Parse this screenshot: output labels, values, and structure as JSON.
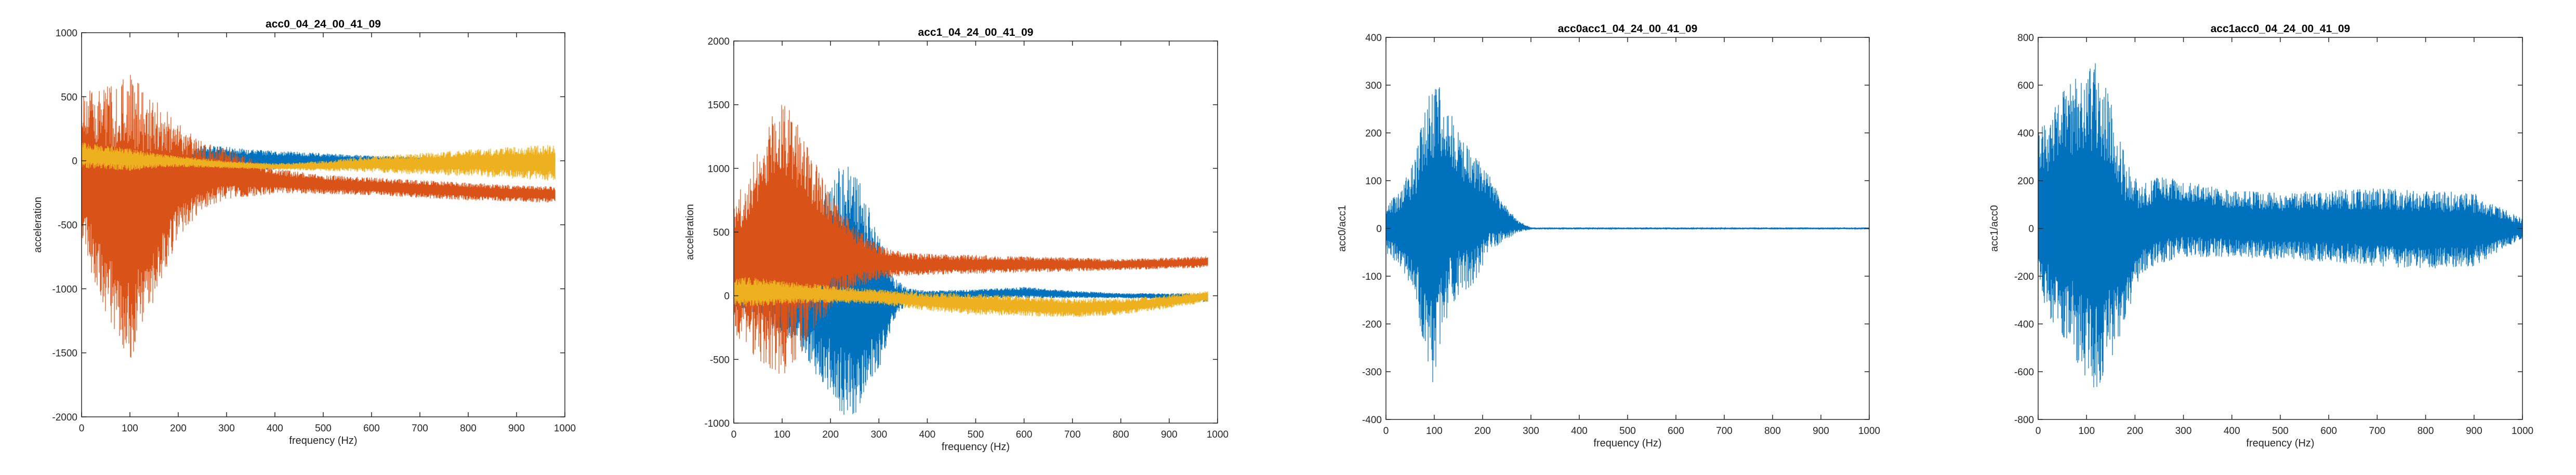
{
  "figure": {
    "background": "#ffffff"
  },
  "colors": {
    "blue": "#0072bd",
    "orange": "#d95319",
    "yellow": "#edb120",
    "axis": "#262626"
  },
  "chart_data": [
    {
      "type": "line",
      "title": "acc0_04_24_00_41_09",
      "xlabel": "frequency (Hz)",
      "ylabel": "acceleration",
      "xlim": [
        0,
        1000
      ],
      "ylim": [
        -2000,
        1000
      ],
      "xticks": [
        0,
        100,
        200,
        300,
        400,
        500,
        600,
        700,
        800,
        900,
        1000
      ],
      "yticks": [
        -2000,
        -1500,
        -1000,
        -500,
        0,
        500,
        1000
      ],
      "grid": false,
      "series": [
        {
          "color": "#0072bd",
          "x": [
            0,
            50,
            100,
            150,
            200,
            250,
            300,
            350,
            400,
            500,
            600,
            700,
            800,
            900,
            980
          ],
          "upper": [
            40,
            60,
            40,
            20,
            30,
            120,
            110,
            90,
            80,
            60,
            40,
            30,
            20,
            10,
            20
          ],
          "lower": [
            -60,
            -50,
            -30,
            -30,
            -30,
            -60,
            -70,
            -80,
            -70,
            -50,
            -40,
            -30,
            -20,
            -10,
            -10
          ]
        },
        {
          "color": "#d95319",
          "x": [
            0,
            50,
            100,
            150,
            200,
            250,
            300,
            400,
            500,
            600,
            700,
            800,
            900,
            980
          ],
          "upper": [
            550,
            580,
            680,
            500,
            300,
            150,
            100,
            -60,
            -110,
            -130,
            -150,
            -170,
            -190,
            -200
          ],
          "lower": [
            -700,
            -1200,
            -1560,
            -1100,
            -600,
            -380,
            -300,
            -260,
            -260,
            -270,
            -290,
            -310,
            -320,
            -330
          ]
        },
        {
          "color": "#edb120",
          "x": [
            0,
            50,
            100,
            150,
            200,
            300,
            400,
            500,
            600,
            700,
            800,
            900,
            980
          ],
          "upper": [
            150,
            120,
            100,
            60,
            40,
            0,
            -20,
            0,
            40,
            60,
            90,
            110,
            130
          ],
          "lower": [
            -60,
            -70,
            -80,
            -60,
            -50,
            -60,
            -70,
            -80,
            -90,
            -110,
            -120,
            -140,
            -160
          ]
        }
      ]
    },
    {
      "type": "line",
      "title": "acc1_04_24_00_41_09",
      "xlabel": "frequency (Hz)",
      "ylabel": "acceleration",
      "xlim": [
        0,
        1000
      ],
      "ylim": [
        -1000,
        2000
      ],
      "xticks": [
        0,
        100,
        200,
        300,
        400,
        500,
        600,
        700,
        800,
        900,
        1000
      ],
      "yticks": [
        -1000,
        -500,
        0,
        500,
        1000,
        1500,
        2000
      ],
      "grid": false,
      "series": [
        {
          "color": "#0072bd",
          "x": [
            0,
            50,
            100,
            150,
            200,
            230,
            260,
            300,
            330,
            360,
            400,
            500,
            600,
            700,
            800,
            900,
            980
          ],
          "upper": [
            200,
            250,
            300,
            500,
            900,
            1080,
            900,
            500,
            150,
            60,
            40,
            50,
            70,
            40,
            20,
            20,
            20
          ],
          "lower": [
            -100,
            -200,
            -300,
            -500,
            -800,
            -980,
            -900,
            -600,
            -200,
            -50,
            -30,
            -20,
            -20,
            -20,
            -20,
            -30,
            -50
          ]
        },
        {
          "color": "#d95319",
          "x": [
            0,
            50,
            100,
            150,
            200,
            250,
            300,
            350,
            400,
            500,
            600,
            700,
            800,
            900,
            980
          ],
          "upper": [
            700,
            1200,
            1600,
            1200,
            800,
            550,
            400,
            340,
            330,
            320,
            310,
            300,
            290,
            300,
            310
          ],
          "lower": [
            -300,
            -500,
            -650,
            -400,
            -100,
            50,
            130,
            150,
            160,
            170,
            180,
            190,
            200,
            210,
            220
          ]
        },
        {
          "color": "#edb120",
          "x": [
            0,
            50,
            100,
            150,
            200,
            300,
            400,
            500,
            600,
            700,
            800,
            900,
            980
          ],
          "upper": [
            150,
            140,
            120,
            100,
            80,
            50,
            30,
            20,
            0,
            -20,
            -20,
            10,
            40
          ],
          "lower": [
            -80,
            -90,
            -70,
            -60,
            -60,
            -70,
            -120,
            -150,
            -160,
            -170,
            -150,
            -100,
            -50
          ]
        }
      ]
    },
    {
      "type": "line",
      "title": "acc0acc1_04_24_00_41_09",
      "xlabel": "frequency (Hz)",
      "ylabel": "acc0/acc1",
      "xlim": [
        0,
        1000
      ],
      "ylim": [
        -400,
        400
      ],
      "xticks": [
        0,
        100,
        200,
        300,
        400,
        500,
        600,
        700,
        800,
        900,
        1000
      ],
      "yticks": [
        -400,
        -300,
        -200,
        -100,
        0,
        100,
        200,
        300,
        400
      ],
      "grid": false,
      "series": [
        {
          "color": "#0072bd",
          "x": [
            0,
            30,
            60,
            80,
            100,
            120,
            150,
            180,
            210,
            240,
            270,
            300,
            400,
            600,
            800,
            1000
          ],
          "upper": [
            50,
            80,
            150,
            250,
            330,
            280,
            200,
            160,
            120,
            60,
            20,
            2,
            2,
            2,
            2,
            2
          ],
          "lower": [
            -50,
            -80,
            -150,
            -250,
            -340,
            -200,
            -140,
            -120,
            -60,
            -30,
            -10,
            -2,
            -2,
            -2,
            -2,
            -2
          ]
        }
      ]
    },
    {
      "type": "line",
      "title": "acc1acc0_04_24_00_41_09",
      "xlabel": "frequency (Hz)",
      "ylabel": "acc1/acc0",
      "xlim": [
        0,
        1000
      ],
      "ylim": [
        -800,
        800
      ],
      "xticks": [
        0,
        100,
        200,
        300,
        400,
        500,
        600,
        700,
        800,
        900,
        1000
      ],
      "yticks": [
        -800,
        -600,
        -400,
        -200,
        0,
        200,
        400,
        600,
        800
      ],
      "grid": false,
      "series": [
        {
          "color": "#0072bd",
          "x": [
            0,
            30,
            60,
            90,
            120,
            150,
            180,
            210,
            250,
            300,
            400,
            500,
            600,
            700,
            800,
            900,
            1000
          ],
          "upper": [
            400,
            500,
            600,
            650,
            700,
            550,
            300,
            180,
            220,
            200,
            160,
            150,
            160,
            170,
            160,
            150,
            40
          ],
          "lower": [
            -300,
            -400,
            -500,
            -600,
            -690,
            -550,
            -400,
            -200,
            -150,
            -120,
            -120,
            -130,
            -140,
            -160,
            -170,
            -160,
            -40
          ]
        }
      ]
    }
  ]
}
